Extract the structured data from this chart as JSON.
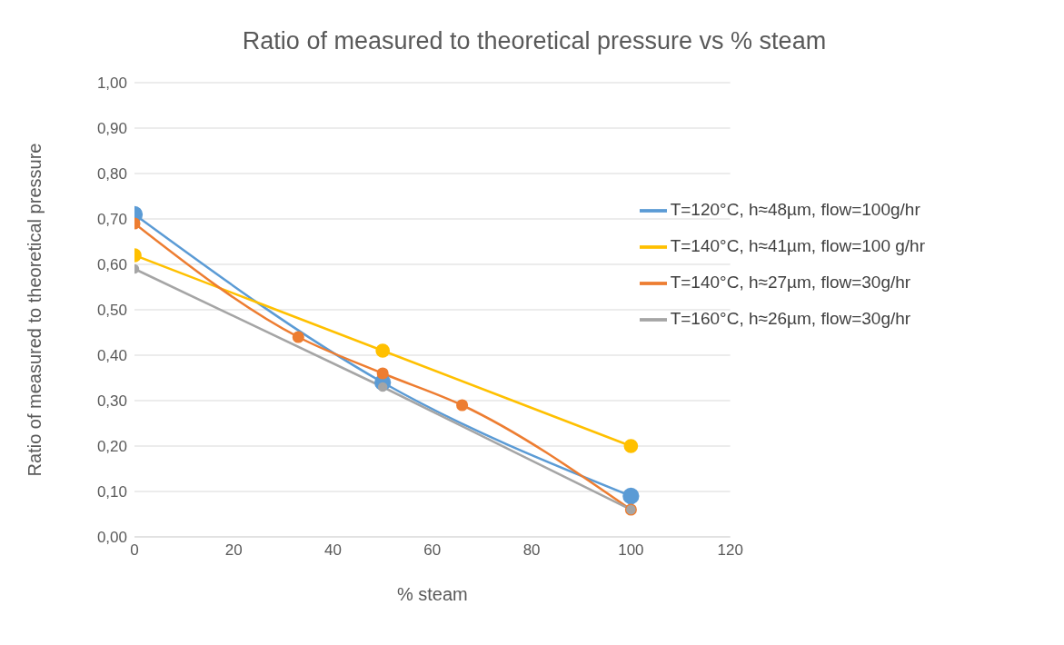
{
  "chart_data": {
    "type": "line",
    "title": "Ratio of measured to theoretical pressure vs % steam",
    "xlabel": "% steam",
    "ylabel": "Ratio of measured to theoretical pressure",
    "xlim": [
      0,
      120
    ],
    "xticks": [
      0,
      20,
      40,
      60,
      80,
      100,
      120
    ],
    "ylim": [
      0,
      1
    ],
    "yticks": [
      {
        "value": 0,
        "label": "0,00"
      },
      {
        "value": 0.1,
        "label": "0,10"
      },
      {
        "value": 0.2,
        "label": "0,20"
      },
      {
        "value": 0.3,
        "label": "0,30"
      },
      {
        "value": 0.4,
        "label": "0,40"
      },
      {
        "value": 0.5,
        "label": "0,50"
      },
      {
        "value": 0.6,
        "label": "0,60"
      },
      {
        "value": 0.7,
        "label": "0,70"
      },
      {
        "value": 0.8,
        "label": "0,80"
      },
      {
        "value": 0.9,
        "label": "0,90"
      },
      {
        "value": 1,
        "label": "1,00"
      }
    ],
    "grid": "y",
    "legend": "top right",
    "marker": "circle",
    "line_style": "solid",
    "series": [
      {
        "name": "T=120°C, h≈48µm, flow=100g/hr",
        "color": "#5b9bd5",
        "x": [
          0,
          50,
          100
        ],
        "values": [
          0.71,
          0.34,
          0.09
        ]
      },
      {
        "name": "T=140°C, h≈41µm, flow=100 g/hr",
        "color": "#ffc000",
        "x": [
          0,
          50,
          100
        ],
        "values": [
          0.62,
          0.41,
          0.2
        ]
      },
      {
        "name": "T=140°C, h≈27µm, flow=30g/hr",
        "color": "#ed7d31",
        "x": [
          0,
          33,
          50,
          66,
          100
        ],
        "values": [
          0.69,
          0.44,
          0.36,
          0.29,
          0.06
        ]
      },
      {
        "name": "T=160°C, h≈26µm, flow=30g/hr",
        "color": "#a5a5a5",
        "x": [
          0,
          50,
          100
        ],
        "values": [
          0.59,
          0.33,
          0.06
        ]
      }
    ]
  }
}
